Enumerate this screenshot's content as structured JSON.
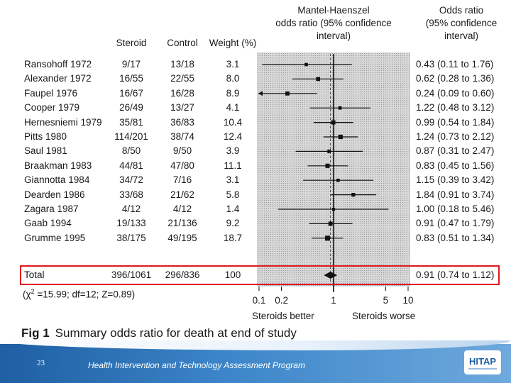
{
  "header": {
    "col_steroid": "Steroid",
    "col_control": "Control",
    "col_weight": "Weight (%)",
    "col_mh_line1": "Mantel-Haenszel",
    "col_mh_line2": "odds ratio (95% confidence",
    "col_mh_line3": "interval)",
    "col_or_line1": "Odds ratio",
    "col_or_line2": "(95% confidence",
    "col_or_line3": "interval)"
  },
  "chart_data": {
    "type": "forest",
    "title": "Summary odds ratio for death at end of study",
    "figure_label": "Fig 1",
    "x_scale": "log",
    "xlim": [
      0.1,
      10
    ],
    "ticks": [
      0.1,
      0.2,
      1,
      5,
      10
    ],
    "tick_labels": [
      "0.1",
      "0.2",
      "1",
      "5",
      "10"
    ],
    "xlabel_left": "Steroids better",
    "xlabel_right": "Steroids worse",
    "studies": [
      {
        "name": "Ransohoff 1972",
        "steroid": "9/17",
        "control": "13/18",
        "weight": "3.1",
        "or": 0.43,
        "lo": 0.11,
        "hi": 1.76,
        "ci_text": "0.43 (0.11 to 1.76)"
      },
      {
        "name": "Alexander 1972",
        "steroid": "16/55",
        "control": "22/55",
        "weight": "8.0",
        "or": 0.62,
        "lo": 0.28,
        "hi": 1.36,
        "ci_text": "0.62 (0.28 to 1.36)"
      },
      {
        "name": "Faupel 1976",
        "steroid": "16/67",
        "control": "16/28",
        "weight": "8.9",
        "or": 0.24,
        "lo": 0.09,
        "hi": 0.6,
        "ci_text": "0.24 (0.09 to 0.60)"
      },
      {
        "name": "Cooper 1979",
        "steroid": "26/49",
        "control": "13/27",
        "weight": "4.1",
        "or": 1.22,
        "lo": 0.48,
        "hi": 3.12,
        "ci_text": "1.22 (0.48 to 3.12)"
      },
      {
        "name": "Hernesniemi 1979",
        "steroid": "35/81",
        "control": "36/83",
        "weight": "10.4",
        "or": 0.99,
        "lo": 0.54,
        "hi": 1.84,
        "ci_text": "0.99 (0.54 to 1.84)"
      },
      {
        "name": "Pitts 1980",
        "steroid": "114/201",
        "control": "38/74",
        "weight": "12.4",
        "or": 1.24,
        "lo": 0.73,
        "hi": 2.12,
        "ci_text": "1.24 (0.73 to 2.12)"
      },
      {
        "name": "Saul 1981",
        "steroid": "8/50",
        "control": "9/50",
        "weight": "3.9",
        "or": 0.87,
        "lo": 0.31,
        "hi": 2.47,
        "ci_text": "0.87 (0.31 to 2.47)"
      },
      {
        "name": "Braakman 1983",
        "steroid": "44/81",
        "control": "47/80",
        "weight": "11.1",
        "or": 0.83,
        "lo": 0.45,
        "hi": 1.56,
        "ci_text": "0.83 (0.45 to 1.56)"
      },
      {
        "name": "Giannotta 1984",
        "steroid": "34/72",
        "control": "7/16",
        "weight": "3.1",
        "or": 1.15,
        "lo": 0.39,
        "hi": 3.42,
        "ci_text": "1.15 (0.39 to 3.42)"
      },
      {
        "name": "Dearden 1986",
        "steroid": "33/68",
        "control": "21/62",
        "weight": "5.8",
        "or": 1.84,
        "lo": 0.91,
        "hi": 3.74,
        "ci_text": "1.84 (0.91 to 3.74)"
      },
      {
        "name": "Zagara 1987",
        "steroid": "4/12",
        "control": "4/12",
        "weight": "1.4",
        "or": 1.0,
        "lo": 0.18,
        "hi": 5.46,
        "ci_text": "1.00 (0.18 to 5.46)"
      },
      {
        "name": "Gaab 1994",
        "steroid": "19/133",
        "control": "21/136",
        "weight": "9.2",
        "or": 0.91,
        "lo": 0.47,
        "hi": 1.79,
        "ci_text": "0.91 (0.47 to 1.79)"
      },
      {
        "name": "Grumme 1995",
        "steroid": "38/175",
        "control": "49/195",
        "weight": "18.7",
        "or": 0.83,
        "lo": 0.51,
        "hi": 1.34,
        "ci_text": "0.83 (0.51 to 1.34)"
      }
    ],
    "total": {
      "name": "Total",
      "steroid": "396/1061",
      "control": "296/836",
      "weight": "100",
      "or": 0.91,
      "lo": 0.74,
      "hi": 1.12,
      "ci_text": "0.91 (0.74 to 1.12)"
    },
    "heterogeneity_prefix": "(",
    "heterogeneity_chi": "χ",
    "heterogeneity_sup": "2",
    "heterogeneity_rest": " =15.99; df=12; Z=0.89)"
  },
  "footer": {
    "page_number": "23",
    "program_name": "Health Intervention and Technology Assessment Program",
    "logo_text": "HITAP"
  },
  "colors": {
    "highlight": "#e0181b",
    "footer_start": "#1f5fa3",
    "footer_end": "#6fa9dd"
  }
}
